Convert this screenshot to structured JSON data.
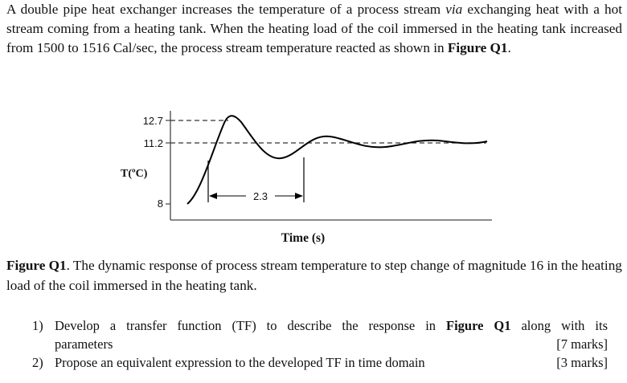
{
  "problem": {
    "intro_part1": "A double pipe heat exchanger increases the temperature of a process stream ",
    "intro_via": "via",
    "intro_part2": " exchanging heat with a hot stream coming from a heating tank. When the heating load of the coil immersed in the heating tank increased from 1500 to 1516 Cal/sec, the process stream temperature reacted as shown in ",
    "intro_figref": "Figure Q1",
    "intro_end": "."
  },
  "chart_data": {
    "type": "line",
    "title": "",
    "xlabel": "Time (s)",
    "ylabel": "T(ºC)",
    "y_ticks": [
      "12.7",
      "11.2",
      "8"
    ],
    "annotation": "2.3",
    "colors": {
      "line": "#000000",
      "axis": "#444444"
    }
  },
  "caption": {
    "label": "Figure Q1",
    "text": ". The dynamic response of process stream temperature to step change of magnitude 16 in the heating load of the coil immersed in the heating tank."
  },
  "questions": [
    {
      "number": "1)",
      "text_a": "Develop a transfer function (TF) to describe the response in ",
      "figref": "Figure Q1",
      "text_b": " along with its",
      "text_c": "parameters",
      "marks": "[7 marks]"
    },
    {
      "number": "2)",
      "text": "Propose an equivalent expression to the developed TF in time domain",
      "marks": "[3 marks]"
    }
  ]
}
